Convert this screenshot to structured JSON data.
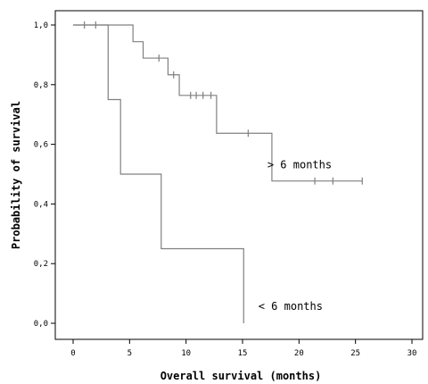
{
  "chart_data": {
    "type": "line",
    "subtype": "kaplan-meier step",
    "xlabel": "Overall survival (months)",
    "ylabel": "Probability of survival",
    "xlim": [
      0,
      30
    ],
    "ylim": [
      0,
      1
    ],
    "x_ticks": [
      0,
      5,
      10,
      15,
      20,
      25,
      30
    ],
    "x_tick_labels": [
      "0",
      "5",
      "10",
      "15",
      "20",
      "25",
      "30"
    ],
    "y_ticks": [
      0,
      0.2,
      0.4,
      0.6,
      0.8,
      1.0
    ],
    "y_tick_labels": [
      "0,0",
      "0,2",
      "0,4",
      "0,6",
      "0,8",
      "1,0"
    ],
    "grid": false,
    "legend": "none (direct labels)",
    "series": [
      {
        "name": "> 6 months",
        "label": "> 6 months",
        "color": "#808080",
        "steps": [
          [
            0,
            1.0
          ],
          [
            5.3,
            0.944
          ],
          [
            6.2,
            0.889
          ],
          [
            8.4,
            0.833
          ],
          [
            9.4,
            0.764
          ],
          [
            12.7,
            0.637
          ],
          [
            17.6,
            0.477
          ]
        ],
        "end_x": 25.6,
        "censored": [
          [
            1.0,
            1.0
          ],
          [
            2.0,
            1.0
          ],
          [
            7.6,
            0.889
          ],
          [
            8.9,
            0.833
          ],
          [
            10.4,
            0.764
          ],
          [
            10.9,
            0.764
          ],
          [
            11.5,
            0.764
          ],
          [
            12.2,
            0.764
          ],
          [
            15.5,
            0.637
          ],
          [
            21.4,
            0.477
          ],
          [
            23.0,
            0.477
          ],
          [
            25.6,
            0.477
          ]
        ]
      },
      {
        "name": "< 6 months",
        "label": "< 6 months",
        "color": "#808080",
        "steps": [
          [
            0,
            1.0
          ],
          [
            3.1,
            0.75
          ],
          [
            4.2,
            0.5
          ],
          [
            7.8,
            0.25
          ],
          [
            15.1,
            0.0
          ]
        ],
        "end_x": 15.1,
        "censored": []
      }
    ]
  }
}
